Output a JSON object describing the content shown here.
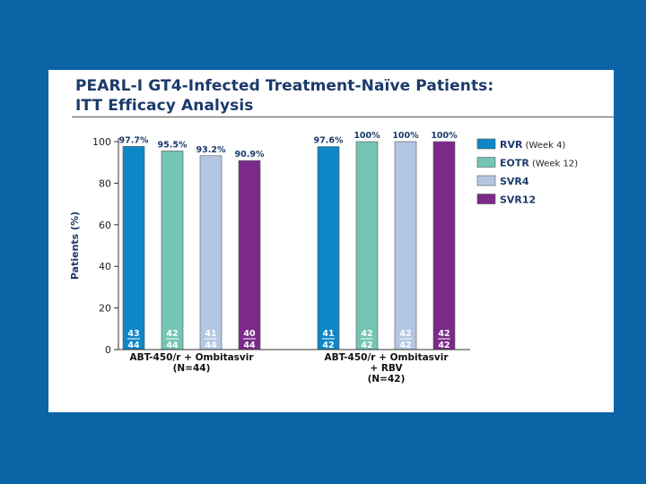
{
  "slide": {
    "title_line1": "PEARL-I GT4-Infected Treatment-Naïve Patients:",
    "title_line2": "ITT Efficacy Analysis"
  },
  "chart_data": {
    "type": "bar",
    "ylabel": "Patients (%)",
    "ylim": [
      0,
      100
    ],
    "yticks": [
      0,
      20,
      40,
      60,
      80,
      100
    ],
    "grid": false,
    "legend_position": "right",
    "groups": [
      {
        "label_lines": [
          "ABT-450/r + Ombitasvir",
          "(N=44)"
        ],
        "values": [
          97.7,
          95.5,
          93.2,
          90.9
        ],
        "value_labels": [
          "97.7%",
          "95.5%",
          "93.2%",
          "90.9%"
        ],
        "numerators": [
          "43",
          "42",
          "41",
          "40"
        ],
        "denominators": [
          "44",
          "44",
          "44",
          "44"
        ]
      },
      {
        "label_lines": [
          "ABT-450/r + Ombitasvir",
          "+ RBV",
          "(N=42)"
        ],
        "values": [
          97.6,
          100,
          100,
          100
        ],
        "value_labels": [
          "97.6%",
          "100%",
          "100%",
          "100%"
        ],
        "numerators": [
          "41",
          "42",
          "42",
          "42"
        ],
        "denominators": [
          "42",
          "42",
          "42",
          "42"
        ]
      }
    ],
    "series": [
      {
        "name": "RVR",
        "qualifier": "(Week 4)",
        "color": "#0f86c6"
      },
      {
        "name": "EOTR",
        "qualifier": "(Week 12)",
        "color": "#74c5b3"
      },
      {
        "name": "SVR4",
        "qualifier": "",
        "color": "#b3c7e3"
      },
      {
        "name": "SVR12",
        "qualifier": "",
        "color": "#7b2a8a"
      }
    ]
  }
}
